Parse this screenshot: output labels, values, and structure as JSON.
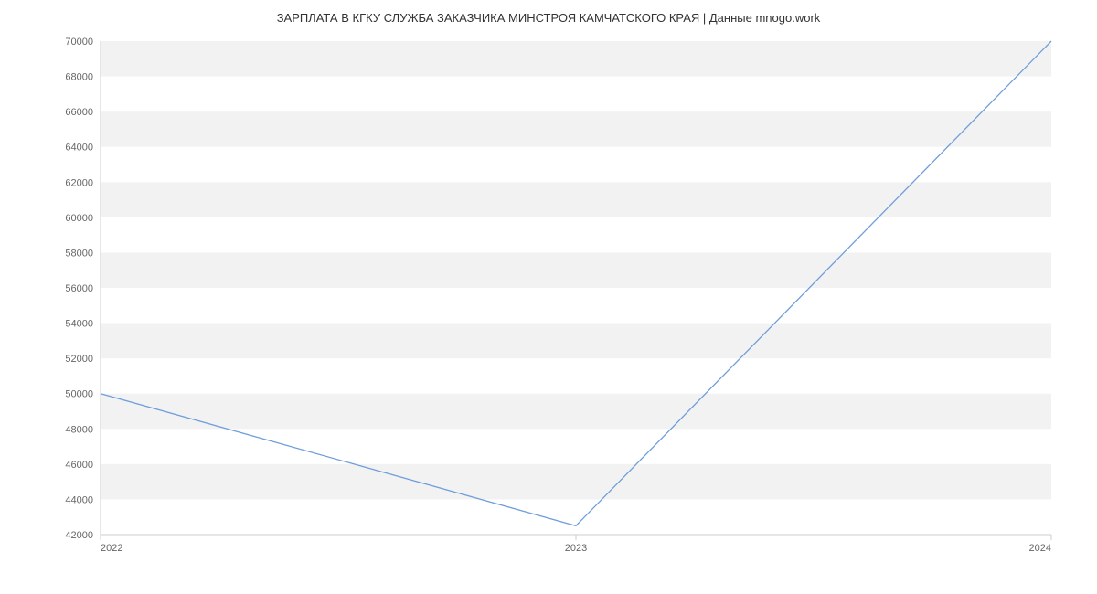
{
  "chart": {
    "type": "line",
    "title": "ЗАРПЛАТА В КГКУ СЛУЖБА ЗАКАЗЧИКА МИНСТРОЯ КАМЧАТСКОГО КРАЯ | Данные mnogo.work",
    "title_fontsize": 13,
    "title_color": "#333333",
    "background_color": "#ffffff",
    "plot_background_band_color": "#f2f2f2",
    "plot_border_color": "#cccccc",
    "tick_label_color": "#666666",
    "tick_label_fontsize": 11,
    "series": {
      "color": "#6f9edb",
      "line_width": 1.3,
      "x": [
        "2022",
        "2023",
        "2024"
      ],
      "y": [
        50000,
        42500,
        70000
      ]
    },
    "x_axis": {
      "categories": [
        "2022",
        "2023",
        "2024"
      ]
    },
    "y_axis": {
      "min": 42000,
      "max": 70000,
      "tick_step": 2000,
      "ticks": [
        42000,
        44000,
        46000,
        48000,
        50000,
        52000,
        54000,
        56000,
        58000,
        60000,
        62000,
        64000,
        66000,
        68000,
        70000
      ]
    }
  }
}
